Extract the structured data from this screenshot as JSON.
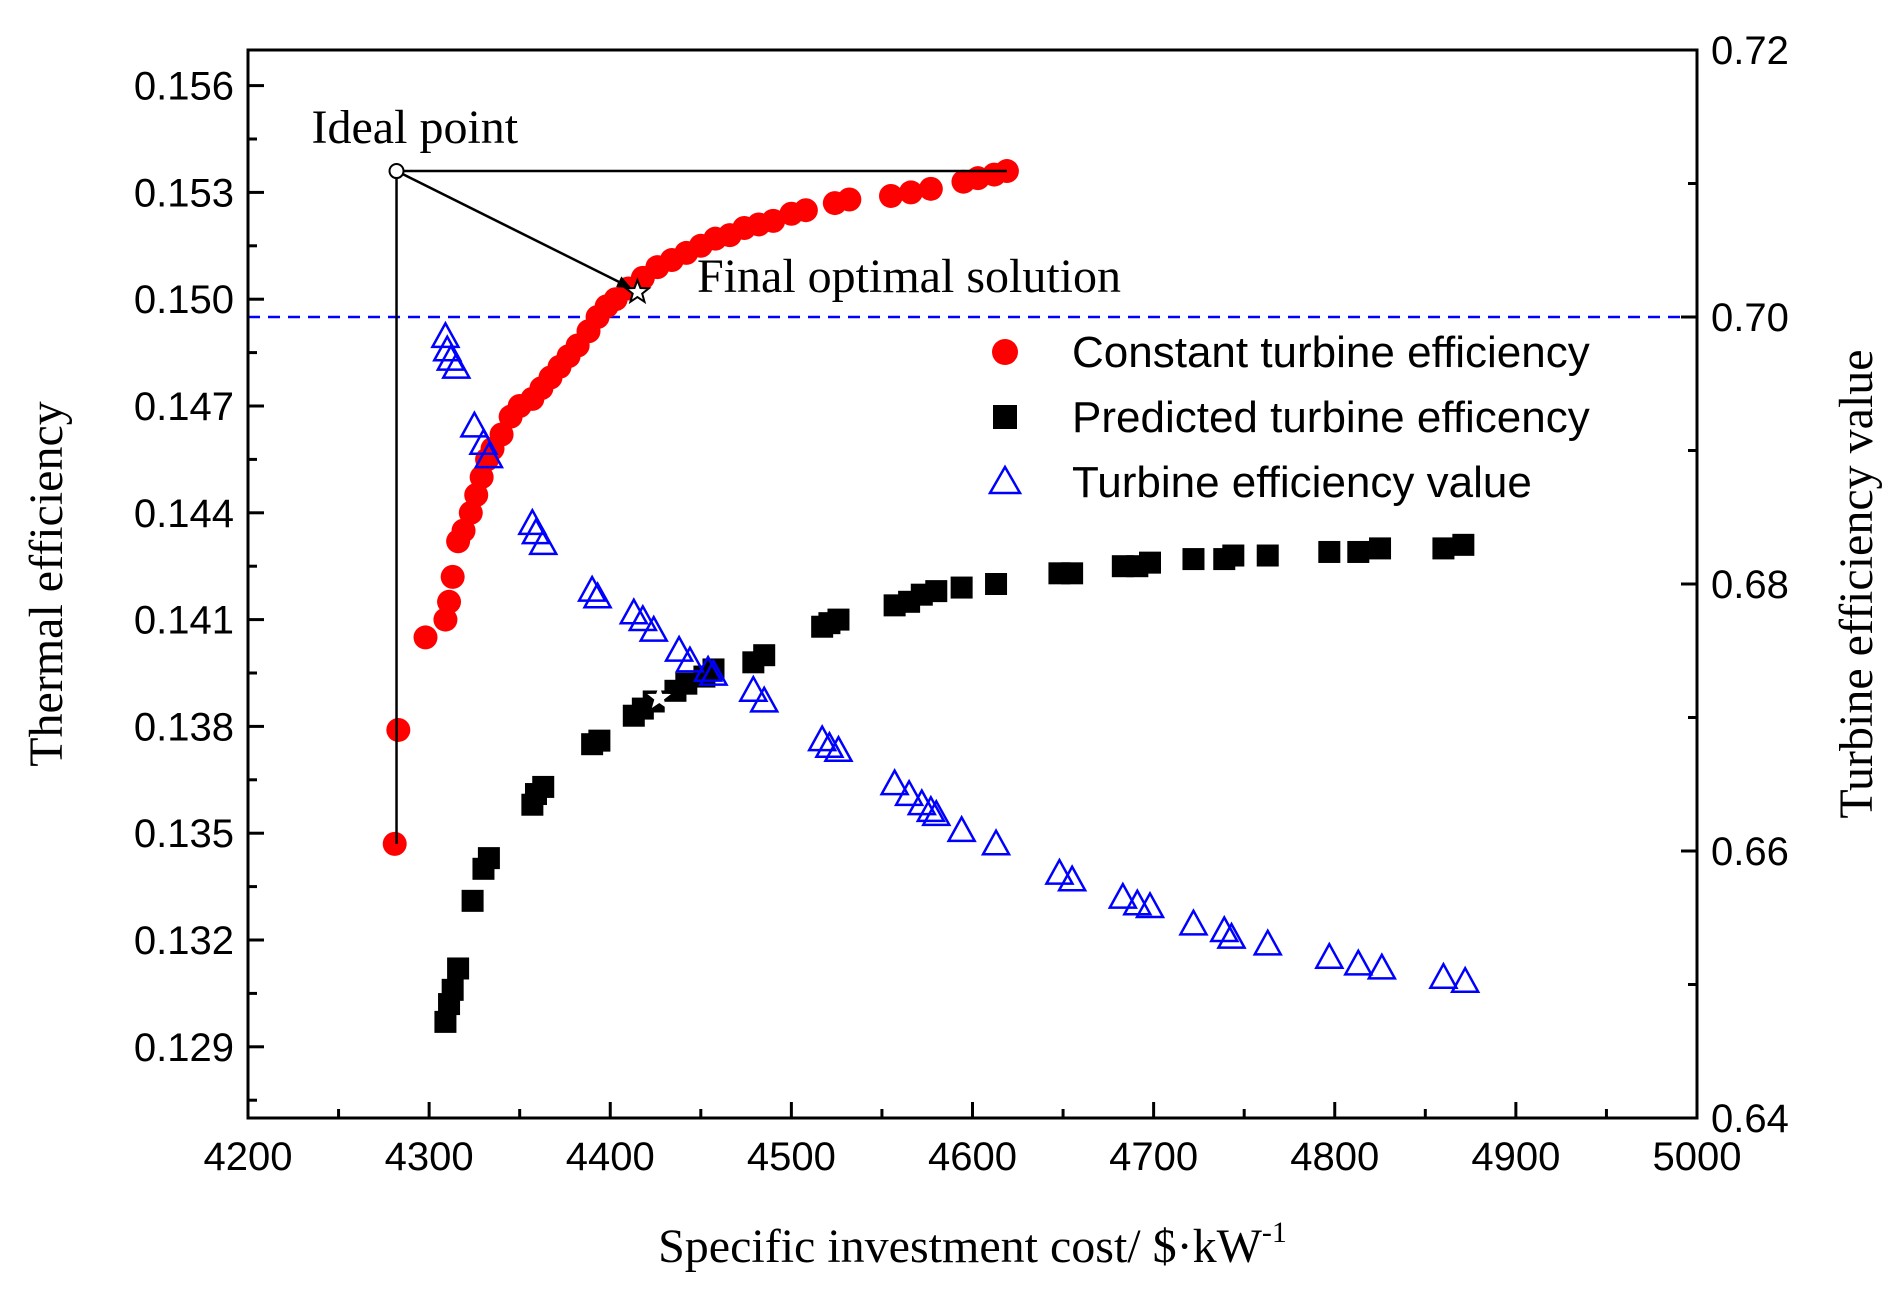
{
  "chart_data": {
    "type": "scatter",
    "xlabel_main": "Specific investment cost/ $·kW",
    "xlabel_sup": "-1",
    "ylabel_left": "Thermal efficiency",
    "ylabel_right": "Turbine efficiency value",
    "xlim": [
      4200,
      5000
    ],
    "ylim_left": [
      0.127,
      0.157
    ],
    "ylim_right": [
      0.64,
      0.72
    ],
    "x_ticks": [
      4200,
      4300,
      4400,
      4500,
      4600,
      4700,
      4800,
      4900,
      5000
    ],
    "x_tick_labels": [
      "4200",
      "4300",
      "4400",
      "4500",
      "4600",
      "4700",
      "4800",
      "4900",
      "5000"
    ],
    "y_left_ticks": [
      0.129,
      0.132,
      0.135,
      0.138,
      0.141,
      0.144,
      0.147,
      0.15,
      0.153,
      0.156
    ],
    "y_left_tick_labels": [
      "0.129",
      "0.132",
      "0.135",
      "0.138",
      "0.141",
      "0.144",
      "0.147",
      "0.150",
      "0.153",
      "0.156"
    ],
    "y_right_ticks": [
      0.64,
      0.66,
      0.68,
      0.7,
      0.72
    ],
    "y_right_tick_labels": [
      "0.64",
      "0.66",
      "0.68",
      "0.70",
      "0.72"
    ],
    "reference_line": {
      "axis": "right",
      "y": 0.7,
      "style": "dashed",
      "color": "#0000ff"
    },
    "legend_position": "right-middle",
    "series": [
      {
        "name": "Constant turbine efficiency",
        "axis": "left",
        "marker": "circle",
        "color": "#ff0000",
        "x": [
          4281,
          4283,
          4298,
          4309,
          4311,
          4313,
          4316,
          4319,
          4323,
          4326,
          4329,
          4332,
          4335,
          4340,
          4345,
          4350,
          4357,
          4362,
          4367,
          4372,
          4377,
          4382,
          4388,
          4393,
          4398,
          4403,
          4410,
          4418,
          4426,
          4434,
          4442,
          4450,
          4458,
          4466,
          4474,
          4482,
          4490,
          4500,
          4508,
          4524,
          4532,
          4555,
          4566,
          4577,
          4595,
          4603,
          4612,
          4619
        ],
        "y": [
          0.1347,
          0.1379,
          0.1405,
          0.141,
          0.1415,
          0.1422,
          0.1432,
          0.1435,
          0.144,
          0.1445,
          0.145,
          0.1455,
          0.1458,
          0.1462,
          0.1467,
          0.147,
          0.1472,
          0.1475,
          0.1478,
          0.1481,
          0.1484,
          0.1487,
          0.1491,
          0.1495,
          0.1498,
          0.15,
          0.1503,
          0.1506,
          0.1509,
          0.1511,
          0.1513,
          0.1515,
          0.1517,
          0.1518,
          0.152,
          0.1521,
          0.1522,
          0.1524,
          0.1525,
          0.1527,
          0.1528,
          0.1529,
          0.153,
          0.1531,
          0.1533,
          0.1534,
          0.1535,
          0.1536
        ]
      },
      {
        "name": "Predicted turbine efficency",
        "axis": "left",
        "marker": "square",
        "color": "#000000",
        "x": [
          4309,
          4311,
          4313,
          4316,
          4324,
          4330,
          4333,
          4357,
          4359,
          4363,
          4390,
          4394,
          4413,
          4418,
          4424,
          4436,
          4442,
          4452,
          4457,
          4479,
          4485,
          4517,
          4521,
          4526,
          4557,
          4565,
          4572,
          4580,
          4594,
          4613,
          4648,
          4655,
          4683,
          4691,
          4698,
          4722,
          4739,
          4744,
          4763,
          4797,
          4813,
          4825,
          4860,
          4871
        ],
        "y": [
          0.1297,
          0.1302,
          0.1306,
          0.1312,
          0.1331,
          0.134,
          0.1343,
          0.1358,
          0.1361,
          0.1363,
          0.1375,
          0.1376,
          0.1383,
          0.1385,
          0.1387,
          0.139,
          0.1392,
          0.1394,
          0.1396,
          0.1398,
          0.14,
          0.1408,
          0.1409,
          0.141,
          0.1414,
          0.1415,
          0.1417,
          0.1418,
          0.1419,
          0.142,
          0.1423,
          0.1423,
          0.1425,
          0.1425,
          0.1426,
          0.1427,
          0.1427,
          0.1428,
          0.1428,
          0.1429,
          0.1429,
          0.143,
          0.143,
          0.1431
        ]
      },
      {
        "name": "Turbine efficiency value",
        "axis": "right",
        "marker": "triangle-open",
        "color": "#0000ff",
        "x": [
          4309,
          4310,
          4312,
          4315,
          4325,
          4330,
          4333,
          4357,
          4359,
          4363,
          4390,
          4393,
          4413,
          4418,
          4424,
          4438,
          4444,
          4454,
          4457,
          4479,
          4485,
          4517,
          4521,
          4526,
          4557,
          4565,
          4572,
          4577,
          4580,
          4594,
          4613,
          4648,
          4655,
          4683,
          4691,
          4698,
          4722,
          4739,
          4743,
          4763,
          4797,
          4813,
          4826,
          4860,
          4872
        ],
        "y": [
          0.6985,
          0.6975,
          0.6968,
          0.6962,
          0.6918,
          0.6905,
          0.6895,
          0.6845,
          0.6838,
          0.683,
          0.6795,
          0.679,
          0.6778,
          0.6773,
          0.6765,
          0.675,
          0.6742,
          0.6735,
          0.6732,
          0.672,
          0.6712,
          0.6683,
          0.6678,
          0.6675,
          0.665,
          0.6642,
          0.6635,
          0.663,
          0.6627,
          0.6615,
          0.6605,
          0.6583,
          0.6578,
          0.6565,
          0.656,
          0.6558,
          0.6545,
          0.654,
          0.6535,
          0.653,
          0.652,
          0.6515,
          0.6512,
          0.6505,
          0.6502
        ]
      }
    ],
    "annotations": {
      "ideal_point": {
        "label": "Ideal point",
        "x": 4282,
        "y": 0.1536
      },
      "final_solution": {
        "label": "Final optimal solution",
        "x": 4415,
        "y": 0.1502
      },
      "star_predicted": {
        "x": 4427,
        "y": 0.1388
      }
    }
  }
}
